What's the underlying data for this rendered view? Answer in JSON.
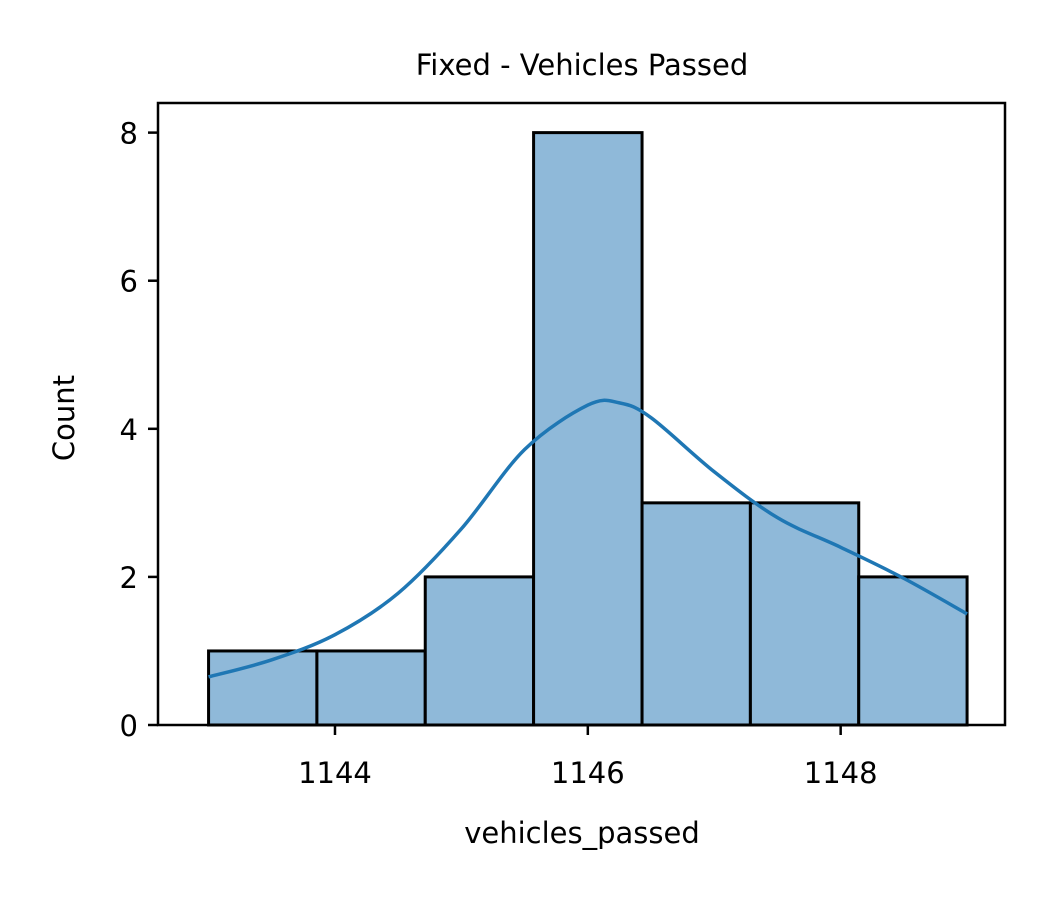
{
  "chart_data": {
    "type": "bar",
    "title": "Fixed - Vehicles Passed",
    "xlabel": "vehicles_passed",
    "ylabel": "Count",
    "bins": [
      {
        "x0": 1143.0,
        "x1": 1143.857,
        "count": 1
      },
      {
        "x0": 1143.857,
        "x1": 1144.714,
        "count": 1
      },
      {
        "x0": 1144.714,
        "x1": 1145.571,
        "count": 2
      },
      {
        "x0": 1145.571,
        "x1": 1146.429,
        "count": 8
      },
      {
        "x0": 1146.429,
        "x1": 1147.286,
        "count": 3
      },
      {
        "x0": 1147.286,
        "x1": 1148.143,
        "count": 3
      },
      {
        "x0": 1148.143,
        "x1": 1149.0,
        "count": 2
      }
    ],
    "kde": {
      "x": [
        1143.0,
        1143.5,
        1144.0,
        1144.5,
        1145.0,
        1145.5,
        1146.0,
        1146.25,
        1146.5,
        1147.0,
        1147.5,
        1148.0,
        1148.5,
        1149.0
      ],
      "y": [
        0.65,
        0.88,
        1.22,
        1.78,
        2.65,
        3.72,
        4.32,
        4.35,
        4.15,
        3.42,
        2.8,
        2.4,
        1.98,
        1.5
      ]
    },
    "xlim": [
      1142.6,
      1149.3
    ],
    "ylim": [
      0,
      8.4
    ],
    "xticks": [
      1144,
      1146,
      1148
    ],
    "yticks": [
      0,
      2,
      4,
      6,
      8
    ],
    "bar_color": "#8fb9d9",
    "edge_color": "#000000",
    "kde_color": "#1f77b4",
    "grid": false
  }
}
